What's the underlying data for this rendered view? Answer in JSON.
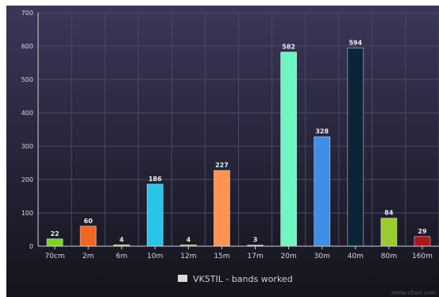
{
  "chart_data": {
    "type": "bar",
    "categories": [
      "70cm",
      "2m",
      "6m",
      "10m",
      "12m",
      "15m",
      "17m",
      "20m",
      "30m",
      "40m",
      "80m",
      "160m"
    ],
    "values": [
      22,
      60,
      4,
      186,
      4,
      227,
      3,
      582,
      328,
      594,
      84,
      29
    ],
    "bar_colors": [
      "#7ed321",
      "#f26522",
      "#f0c44a",
      "#29c5e8",
      "#8dd13a",
      "#ff9352",
      "#e8e8e8",
      "#6ff7c3",
      "#3d8ee6",
      "#0d2438",
      "#9bcc2e",
      "#b3131b"
    ],
    "yticks": [
      0,
      100,
      200,
      300,
      400,
      500,
      600,
      700
    ],
    "ylim": [
      0,
      700
    ],
    "grid": true,
    "legend": {
      "label": "VK5TIL - bands worked",
      "position": "bottom-center",
      "swatch_color": "#dcdcdc"
    },
    "credit": "meta-chart.com",
    "colors": {
      "background_top": "#3a3758",
      "background_bottom": "#14141c",
      "grid": "#4a4868",
      "axis": "#d0d0d8"
    }
  }
}
